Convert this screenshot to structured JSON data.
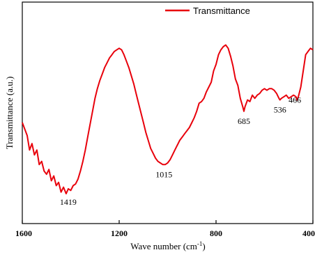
{
  "chart_data": {
    "type": "line",
    "title": "",
    "xlabel": "Wave number (cm",
    "xlabel_sup": "-1",
    "xlabel_close": ")",
    "ylabel": "Transmittance (a.u.)",
    "xlim": [
      1600,
      400
    ],
    "ylim": [
      0,
      1
    ],
    "x_reversed": true,
    "xticks": [
      "1600",
      "1200",
      "800",
      "400"
    ],
    "yticks_shown": false,
    "grid": false,
    "legend": {
      "placement": "top-center",
      "entries": [
        "Transmittance"
      ]
    },
    "series": [
      {
        "name": "Transmittance",
        "color": "#e8000b",
        "x": [
          1600,
          1590,
          1580,
          1570,
          1560,
          1550,
          1540,
          1530,
          1520,
          1510,
          1500,
          1490,
          1480,
          1470,
          1460,
          1450,
          1440,
          1430,
          1419,
          1410,
          1400,
          1390,
          1380,
          1370,
          1360,
          1350,
          1340,
          1330,
          1320,
          1310,
          1300,
          1290,
          1280,
          1270,
          1260,
          1250,
          1240,
          1230,
          1220,
          1210,
          1200,
          1190,
          1180,
          1170,
          1160,
          1150,
          1140,
          1130,
          1120,
          1110,
          1100,
          1090,
          1080,
          1070,
          1060,
          1050,
          1040,
          1030,
          1020,
          1015,
          1010,
          1000,
          990,
          980,
          970,
          960,
          950,
          940,
          930,
          920,
          910,
          900,
          890,
          880,
          870,
          860,
          850,
          840,
          830,
          820,
          810,
          800,
          790,
          780,
          770,
          760,
          750,
          740,
          730,
          720,
          710,
          700,
          690,
          685,
          680,
          670,
          660,
          650,
          640,
          630,
          620,
          610,
          600,
          590,
          580,
          570,
          560,
          550,
          540,
          536,
          530,
          520,
          510,
          500,
          490,
          480,
          470,
          466,
          460,
          450,
          440,
          430,
          420,
          410,
          400
        ],
        "y": [
          0.5,
          0.46,
          0.42,
          0.33,
          0.37,
          0.3,
          0.33,
          0.24,
          0.26,
          0.2,
          0.18,
          0.21,
          0.14,
          0.17,
          0.11,
          0.13,
          0.07,
          0.1,
          0.06,
          0.09,
          0.08,
          0.11,
          0.12,
          0.15,
          0.2,
          0.26,
          0.33,
          0.41,
          0.49,
          0.57,
          0.65,
          0.71,
          0.76,
          0.8,
          0.84,
          0.87,
          0.9,
          0.92,
          0.94,
          0.95,
          0.96,
          0.95,
          0.92,
          0.88,
          0.84,
          0.79,
          0.74,
          0.68,
          0.62,
          0.56,
          0.5,
          0.44,
          0.39,
          0.34,
          0.31,
          0.28,
          0.26,
          0.25,
          0.24,
          0.24,
          0.24,
          0.25,
          0.27,
          0.3,
          0.33,
          0.36,
          0.39,
          0.41,
          0.43,
          0.45,
          0.47,
          0.5,
          0.53,
          0.57,
          0.62,
          0.63,
          0.65,
          0.69,
          0.72,
          0.75,
          0.82,
          0.86,
          0.92,
          0.95,
          0.97,
          0.98,
          0.96,
          0.91,
          0.85,
          0.77,
          0.73,
          0.65,
          0.6,
          0.57,
          0.6,
          0.64,
          0.63,
          0.67,
          0.65,
          0.67,
          0.68,
          0.7,
          0.71,
          0.7,
          0.71,
          0.71,
          0.7,
          0.68,
          0.65,
          0.64,
          0.65,
          0.66,
          0.67,
          0.65,
          0.66,
          0.67,
          0.66,
          0.64,
          0.66,
          0.72,
          0.82,
          0.92,
          0.94,
          0.96,
          0.95
        ]
      }
    ],
    "annotations": [
      {
        "label": "1419",
        "x": 1419,
        "y": 0.06
      },
      {
        "label": "1015",
        "x": 1015,
        "y": 0.24
      },
      {
        "label": "685",
        "x": 685,
        "y": 0.57
      },
      {
        "label": "536",
        "x": 536,
        "y": 0.64
      },
      {
        "label": "466",
        "x": 466,
        "y": 0.64
      }
    ]
  }
}
